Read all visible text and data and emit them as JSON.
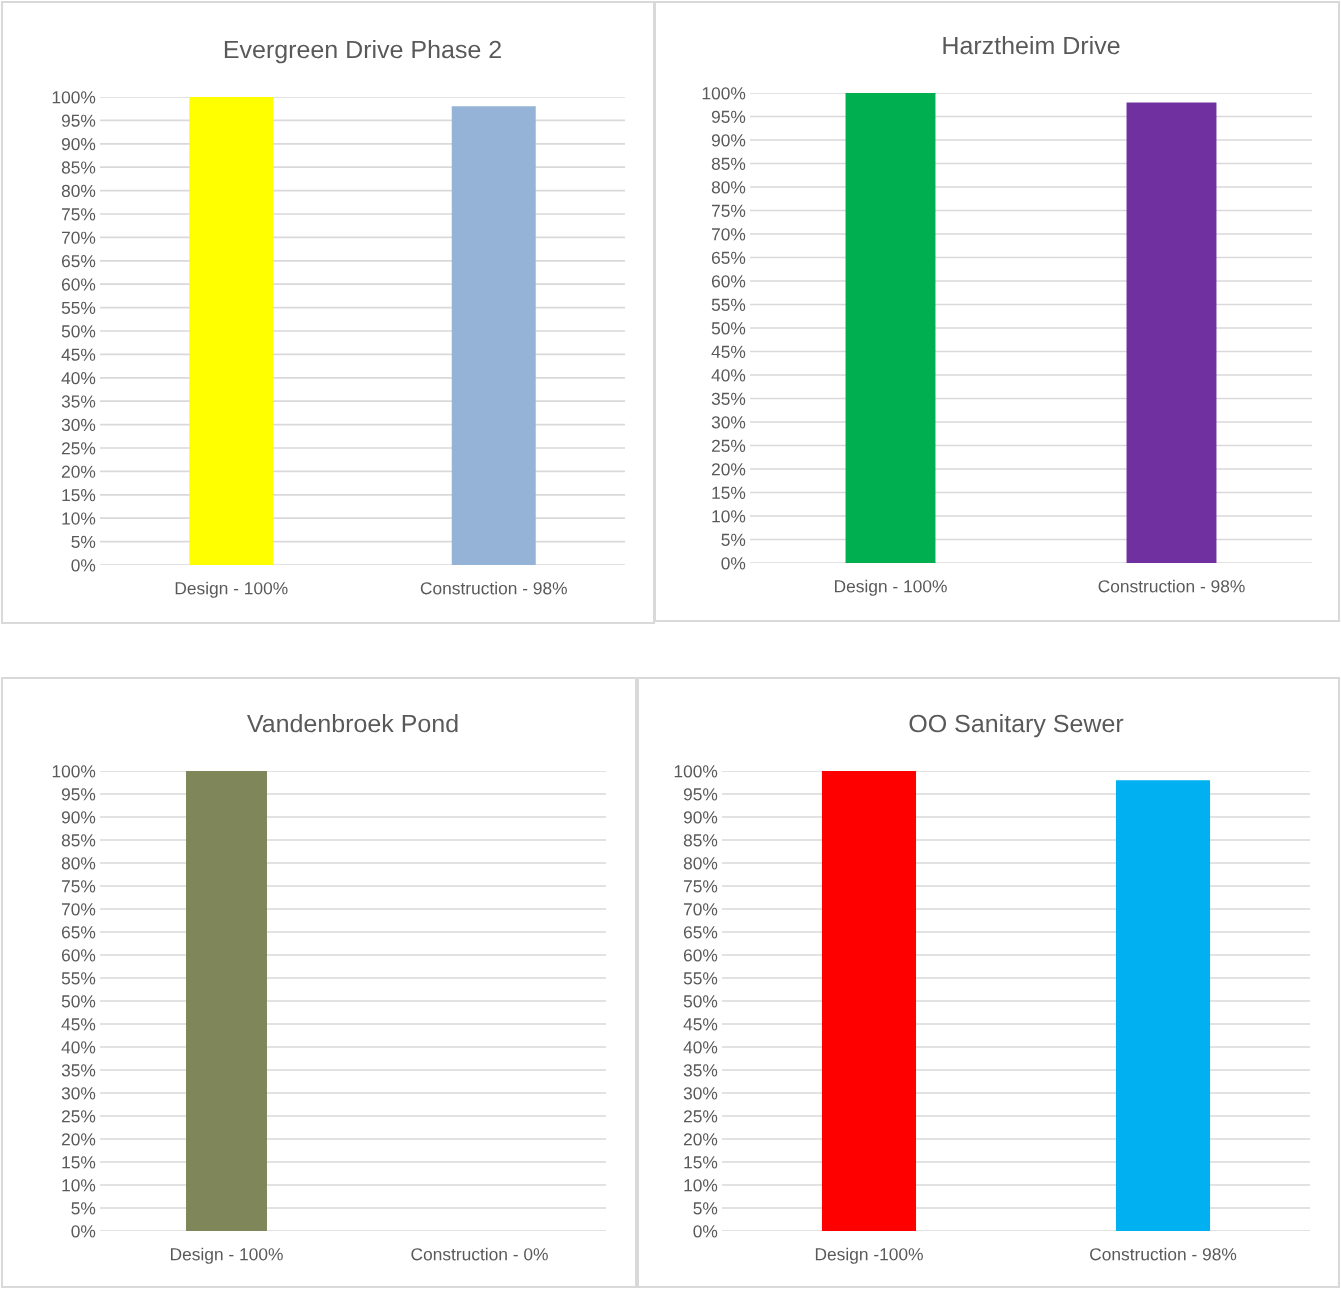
{
  "chart_data": [
    {
      "type": "bar",
      "title": "Evergreen Drive Phase 2",
      "categories": [
        "Design - 100%",
        "Construction - 98%"
      ],
      "values": [
        100,
        98
      ],
      "colors": [
        "#ffff00",
        "#95b3d7"
      ],
      "ylim": [
        0,
        100
      ],
      "yticks": [
        {
          "value": 0,
          "label": "0%"
        },
        {
          "value": 5,
          "label": "5%"
        },
        {
          "value": 10,
          "label": "10%"
        },
        {
          "value": 15,
          "label": "15%"
        },
        {
          "value": 20,
          "label": "20%"
        },
        {
          "value": 25,
          "label": "25%"
        },
        {
          "value": 30,
          "label": "30%"
        },
        {
          "value": 35,
          "label": "35%"
        },
        {
          "value": 40,
          "label": "40%"
        },
        {
          "value": 45,
          "label": "45%"
        },
        {
          "value": 50,
          "label": "50%"
        },
        {
          "value": 55,
          "label": "55%"
        },
        {
          "value": 60,
          "label": "60%"
        },
        {
          "value": 65,
          "label": "65%"
        },
        {
          "value": 70,
          "label": "70%"
        },
        {
          "value": 75,
          "label": "75%"
        },
        {
          "value": 80,
          "label": "80%"
        },
        {
          "value": 85,
          "label": "85%"
        },
        {
          "value": 90,
          "label": "90%"
        },
        {
          "value": 95,
          "label": "95%"
        },
        {
          "value": 100,
          "label": "100%"
        }
      ],
      "grid": "y",
      "legend": false
    },
    {
      "type": "bar",
      "title": "Harztheim Drive",
      "categories": [
        "Design - 100%",
        "Construction - 98%"
      ],
      "values": [
        100,
        98
      ],
      "colors": [
        "#00b050",
        "#7030a0"
      ],
      "ylim": [
        0,
        100
      ],
      "yticks": [
        {
          "value": 0,
          "label": "0%"
        },
        {
          "value": 5,
          "label": "5%"
        },
        {
          "value": 10,
          "label": "10%"
        },
        {
          "value": 15,
          "label": "15%"
        },
        {
          "value": 20,
          "label": "20%"
        },
        {
          "value": 25,
          "label": "25%"
        },
        {
          "value": 30,
          "label": "30%"
        },
        {
          "value": 35,
          "label": "35%"
        },
        {
          "value": 40,
          "label": "40%"
        },
        {
          "value": 45,
          "label": "45%"
        },
        {
          "value": 50,
          "label": "50%"
        },
        {
          "value": 55,
          "label": "55%"
        },
        {
          "value": 60,
          "label": "60%"
        },
        {
          "value": 65,
          "label": "65%"
        },
        {
          "value": 70,
          "label": "70%"
        },
        {
          "value": 75,
          "label": "75%"
        },
        {
          "value": 80,
          "label": "80%"
        },
        {
          "value": 85,
          "label": "85%"
        },
        {
          "value": 90,
          "label": "90%"
        },
        {
          "value": 95,
          "label": "95%"
        },
        {
          "value": 100,
          "label": "100%"
        }
      ],
      "grid": "y",
      "legend": false
    },
    {
      "type": "bar",
      "title": "Vandenbroek Pond",
      "categories": [
        "Design - 100%",
        "Construction - 0%"
      ],
      "values": [
        100,
        0
      ],
      "colors": [
        "#7f8659",
        "#7f8659"
      ],
      "ylim": [
        0,
        100
      ],
      "yticks": [
        {
          "value": 0,
          "label": "0%"
        },
        {
          "value": 5,
          "label": "5%"
        },
        {
          "value": 10,
          "label": "10%"
        },
        {
          "value": 15,
          "label": "15%"
        },
        {
          "value": 20,
          "label": "20%"
        },
        {
          "value": 25,
          "label": "25%"
        },
        {
          "value": 30,
          "label": "30%"
        },
        {
          "value": 35,
          "label": "35%"
        },
        {
          "value": 40,
          "label": "40%"
        },
        {
          "value": 45,
          "label": "45%"
        },
        {
          "value": 50,
          "label": "50%"
        },
        {
          "value": 55,
          "label": "55%"
        },
        {
          "value": 60,
          "label": "60%"
        },
        {
          "value": 65,
          "label": "65%"
        },
        {
          "value": 70,
          "label": "70%"
        },
        {
          "value": 75,
          "label": "75%"
        },
        {
          "value": 80,
          "label": "80%"
        },
        {
          "value": 85,
          "label": "85%"
        },
        {
          "value": 90,
          "label": "90%"
        },
        {
          "value": 95,
          "label": "95%"
        },
        {
          "value": 100,
          "label": "100%"
        }
      ],
      "grid": "y",
      "legend": false
    },
    {
      "type": "bar",
      "title": "OO Sanitary Sewer",
      "categories": [
        "Design -100%",
        "Construction - 98%"
      ],
      "values": [
        100,
        98
      ],
      "colors": [
        "#ff0000",
        "#00b0f0"
      ],
      "ylim": [
        0,
        100
      ],
      "yticks": [
        {
          "value": 0,
          "label": "0%"
        },
        {
          "value": 5,
          "label": "5%"
        },
        {
          "value": 10,
          "label": "10%"
        },
        {
          "value": 15,
          "label": "15%"
        },
        {
          "value": 20,
          "label": "20%"
        },
        {
          "value": 25,
          "label": "25%"
        },
        {
          "value": 30,
          "label": "30%"
        },
        {
          "value": 35,
          "label": "35%"
        },
        {
          "value": 40,
          "label": "40%"
        },
        {
          "value": 45,
          "label": "45%"
        },
        {
          "value": 50,
          "label": "50%"
        },
        {
          "value": 55,
          "label": "55%"
        },
        {
          "value": 60,
          "label": "60%"
        },
        {
          "value": 65,
          "label": "65%"
        },
        {
          "value": 70,
          "label": "70%"
        },
        {
          "value": 75,
          "label": "75%"
        },
        {
          "value": 80,
          "label": "80%"
        },
        {
          "value": 85,
          "label": "85%"
        },
        {
          "value": 90,
          "label": "90%"
        },
        {
          "value": 95,
          "label": "95%"
        },
        {
          "value": 100,
          "label": "100%"
        }
      ],
      "grid": "y",
      "legend": false
    }
  ]
}
